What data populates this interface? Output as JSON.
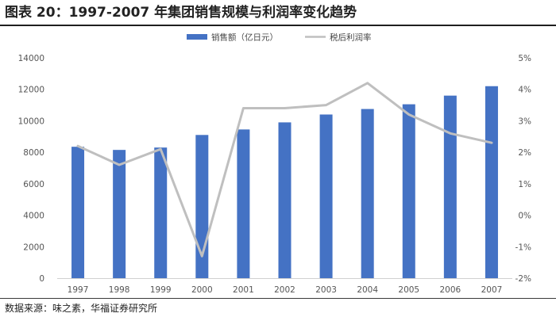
{
  "header": {
    "title": "图表 20：1997-2007 年集团销售规模与利润率变化趋势"
  },
  "footer": {
    "source": "数据来源：味之素，华福证券研究所"
  },
  "colors": {
    "bar": "#4472c4",
    "line": "#bfbfbf"
  },
  "chart_data": {
    "type": "bar",
    "categories": [
      "1997",
      "1998",
      "1999",
      "2000",
      "2001",
      "2002",
      "2003",
      "2004",
      "2005",
      "2006",
      "2007"
    ],
    "series": [
      {
        "name": "销售额（亿日元）",
        "type": "bar",
        "axis": "left",
        "values": [
          8350,
          8150,
          8300,
          9100,
          9450,
          9900,
          10400,
          10750,
          11050,
          11600,
          12200
        ]
      },
      {
        "name": "税后利润率",
        "type": "line",
        "axis": "right",
        "values": [
          2.2,
          1.6,
          2.1,
          -1.3,
          3.4,
          3.4,
          3.5,
          4.2,
          3.2,
          2.6,
          2.3
        ]
      }
    ],
    "y_left": {
      "min": 0,
      "max": 14000,
      "ticks": [
        "0",
        "2000",
        "4000",
        "6000",
        "8000",
        "10000",
        "12000",
        "14000"
      ]
    },
    "y_right": {
      "min": -2,
      "max": 5,
      "ticks": [
        "-2%",
        "-1%",
        "0%",
        "1%",
        "2%",
        "3%",
        "4%",
        "5%"
      ]
    },
    "legend": "top",
    "grid": false
  }
}
